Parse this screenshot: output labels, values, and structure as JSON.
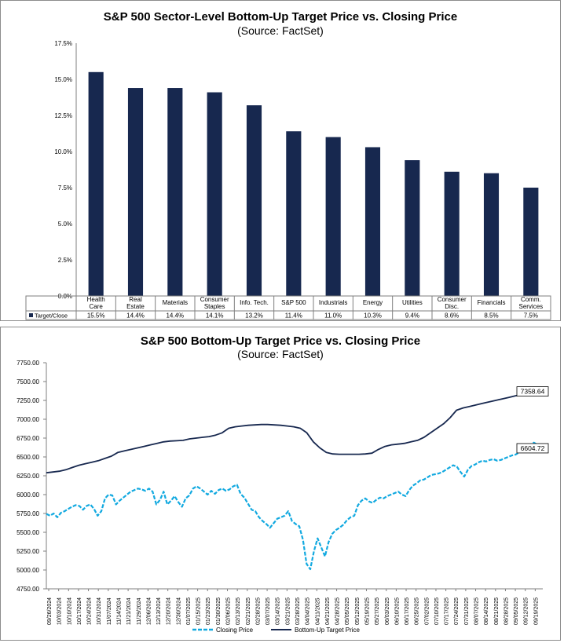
{
  "chart_data": [
    {
      "type": "bar",
      "title": "S&P 500 Sector-Level Bottom-Up Target Price vs. Closing Price",
      "subtitle": "(Source: FactSet)",
      "series_name": "Target/Close",
      "categories": [
        [
          "Health",
          "Care"
        ],
        [
          "Real",
          "Estate"
        ],
        [
          "Materials"
        ],
        [
          "Consumer",
          "Staples"
        ],
        [
          "Info. Tech."
        ],
        [
          "S&P 500"
        ],
        [
          "Industrials"
        ],
        [
          "Energy"
        ],
        [
          "Utilities"
        ],
        [
          "Consumer",
          "Disc."
        ],
        [
          "Financials"
        ],
        [
          "Comm.",
          "Services"
        ]
      ],
      "values": [
        15.5,
        14.4,
        14.4,
        14.1,
        13.2,
        11.4,
        11.0,
        10.3,
        9.4,
        8.6,
        8.5,
        7.5
      ],
      "value_labels": [
        "15.5%",
        "14.4%",
        "14.4%",
        "14.1%",
        "13.2%",
        "11.4%",
        "11.0%",
        "10.3%",
        "9.4%",
        "8.6%",
        "8.5%",
        "7.5%"
      ],
      "ylim": [
        0,
        17.5
      ],
      "yticks": [
        "0.0%",
        "2.5%",
        "5.0%",
        "7.5%",
        "10.0%",
        "12.5%",
        "15.0%",
        "17.5%"
      ],
      "bar_color": "#17284f"
    },
    {
      "type": "line",
      "title": "S&P 500 Bottom-Up Target Price vs. Closing Price",
      "subtitle": "(Source: FactSet)",
      "ylim": [
        4750,
        7750
      ],
      "yticks": [
        "4750.00",
        "5000.00",
        "5250.00",
        "5500.00",
        "5750.00",
        "6000.00",
        "6250.00",
        "6500.00",
        "6750.00",
        "7000.00",
        "7250.00",
        "7500.00",
        "7750.00"
      ],
      "x_ticks": [
        "09/26/2024",
        "10/03/2024",
        "10/10/2024",
        "10/17/2024",
        "10/24/2024",
        "10/31/2024",
        "11/07/2024",
        "11/14/2024",
        "11/21/2024",
        "11/29/2024",
        "12/06/2024",
        "12/13/2024",
        "12/20/2024",
        "12/30/2024",
        "01/07/2025",
        "01/15/2025",
        "01/23/2025",
        "01/30/2025",
        "02/06/2025",
        "02/13/2025",
        "02/21/2025",
        "02/28/2025",
        "03/07/2025",
        "03/14/2025",
        "03/21/2025",
        "03/28/2025",
        "04/04/2025",
        "04/11/2025",
        "04/21/2025",
        "04/28/2025",
        "05/05/2025",
        "05/12/2025",
        "05/19/2025",
        "05/27/2025",
        "06/03/2025",
        "06/10/2025",
        "06/17/2025",
        "06/25/2025",
        "07/02/2025",
        "07/10/2025",
        "07/17/2025",
        "07/24/2025",
        "07/31/2025",
        "08/07/2025",
        "08/14/2025",
        "08/21/2025",
        "08/28/2025",
        "09/05/2025",
        "09/12/2025",
        "09/19/2025"
      ],
      "series": [
        {
          "name": "Closing Price",
          "color": "#12a9e0",
          "style": "dashed",
          "values": [
            5745,
            5720,
            5750,
            5700,
            5760,
            5780,
            5810,
            5840,
            5860,
            5850,
            5800,
            5850,
            5870,
            5810,
            5720,
            5780,
            5950,
            6000,
            5990,
            5870,
            5920,
            5960,
            6000,
            6040,
            6060,
            6080,
            6070,
            6050,
            6080,
            6040,
            5870,
            5930,
            6040,
            5870,
            5920,
            5980,
            5900,
            5840,
            5950,
            5990,
            6080,
            6110,
            6080,
            6040,
            6000,
            6050,
            6010,
            6060,
            6080,
            6050,
            6070,
            6110,
            6130,
            6010,
            5960,
            5880,
            5800,
            5780,
            5700,
            5650,
            5610,
            5560,
            5620,
            5680,
            5700,
            5720,
            5780,
            5650,
            5610,
            5580,
            5400,
            5080,
            5010,
            5250,
            5420,
            5300,
            5180,
            5370,
            5480,
            5530,
            5560,
            5600,
            5660,
            5700,
            5720,
            5860,
            5920,
            5950,
            5910,
            5890,
            5930,
            5960,
            5950,
            5980,
            6000,
            6020,
            6040,
            6000,
            5980,
            6060,
            6120,
            6150,
            6190,
            6200,
            6230,
            6260,
            6270,
            6280,
            6300,
            6330,
            6360,
            6390,
            6370,
            6300,
            6240,
            6330,
            6380,
            6400,
            6430,
            6450,
            6440,
            6460,
            6470,
            6450,
            6460,
            6480,
            6500,
            6520,
            6530,
            6560,
            6600,
            6640,
            6660,
            6690,
            6660,
            6604.72
          ],
          "end_label": "6604.72"
        },
        {
          "name": "Bottom-Up Target Price",
          "color": "#17284f",
          "style": "solid",
          "values": [
            6290,
            6300,
            6310,
            6330,
            6360,
            6390,
            6410,
            6430,
            6450,
            6480,
            6510,
            6560,
            6580,
            6600,
            6620,
            6640,
            6660,
            6680,
            6700,
            6710,
            6715,
            6720,
            6740,
            6750,
            6760,
            6770,
            6790,
            6820,
            6880,
            6900,
            6910,
            6920,
            6925,
            6930,
            6930,
            6925,
            6920,
            6910,
            6900,
            6880,
            6820,
            6700,
            6620,
            6560,
            6540,
            6535,
            6535,
            6535,
            6535,
            6540,
            6550,
            6600,
            6640,
            6660,
            6670,
            6680,
            6700,
            6720,
            6760,
            6820,
            6880,
            6940,
            7020,
            7120,
            7150,
            7170,
            7190,
            7210,
            7230,
            7250,
            7270,
            7290,
            7310,
            7330,
            7340,
            7350,
            7358.64
          ],
          "end_label": "7358.64"
        }
      ],
      "legend": [
        "Closing Price",
        "Bottom-Up Target Price"
      ],
      "legend_position": "bottom"
    }
  ]
}
